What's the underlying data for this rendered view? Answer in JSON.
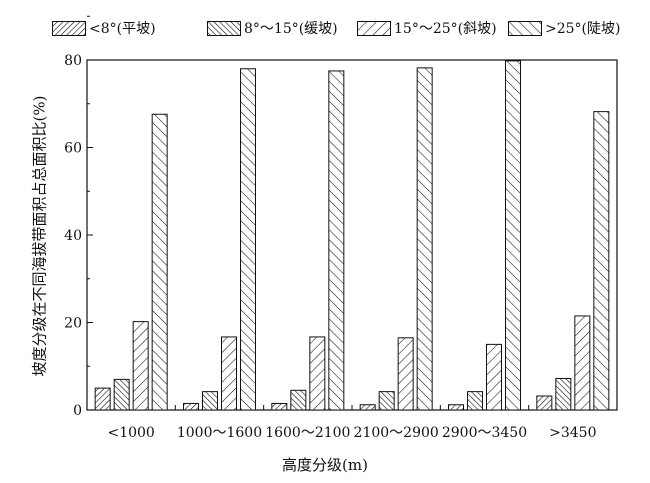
{
  "chart_data": {
    "type": "bar",
    "xlabel": "高度分级(m)",
    "ylabel": "坡度分级在不同海拔带面积占总面积比(%)",
    "categories": [
      "<1000",
      "1000～1600",
      "1600～2100",
      "2100～2900",
      "2900～3450",
      ">3450"
    ],
    "ylim": [
      0,
      80
    ],
    "yticks": [
      0,
      20,
      40,
      60,
      80
    ],
    "legend_position": "top",
    "grid": false,
    "series": [
      {
        "name": "<8°(平坡)",
        "pattern": "diag-fwd-dense",
        "values": [
          5.0,
          1.5,
          1.5,
          1.2,
          1.2,
          3.2
        ]
      },
      {
        "name": "8°～15°(缓坡)",
        "pattern": "diag-back-dense",
        "values": [
          7.0,
          4.2,
          4.5,
          4.2,
          4.2,
          7.2
        ]
      },
      {
        "name": "15°～25°(斜坡)",
        "pattern": "diag-fwd",
        "values": [
          20.2,
          16.7,
          16.7,
          16.5,
          15.0,
          21.5
        ]
      },
      {
        "name": ">25°(陡坡)",
        "pattern": "diag-back",
        "values": [
          67.6,
          78.0,
          77.5,
          78.2,
          79.8,
          68.2
        ]
      }
    ]
  }
}
